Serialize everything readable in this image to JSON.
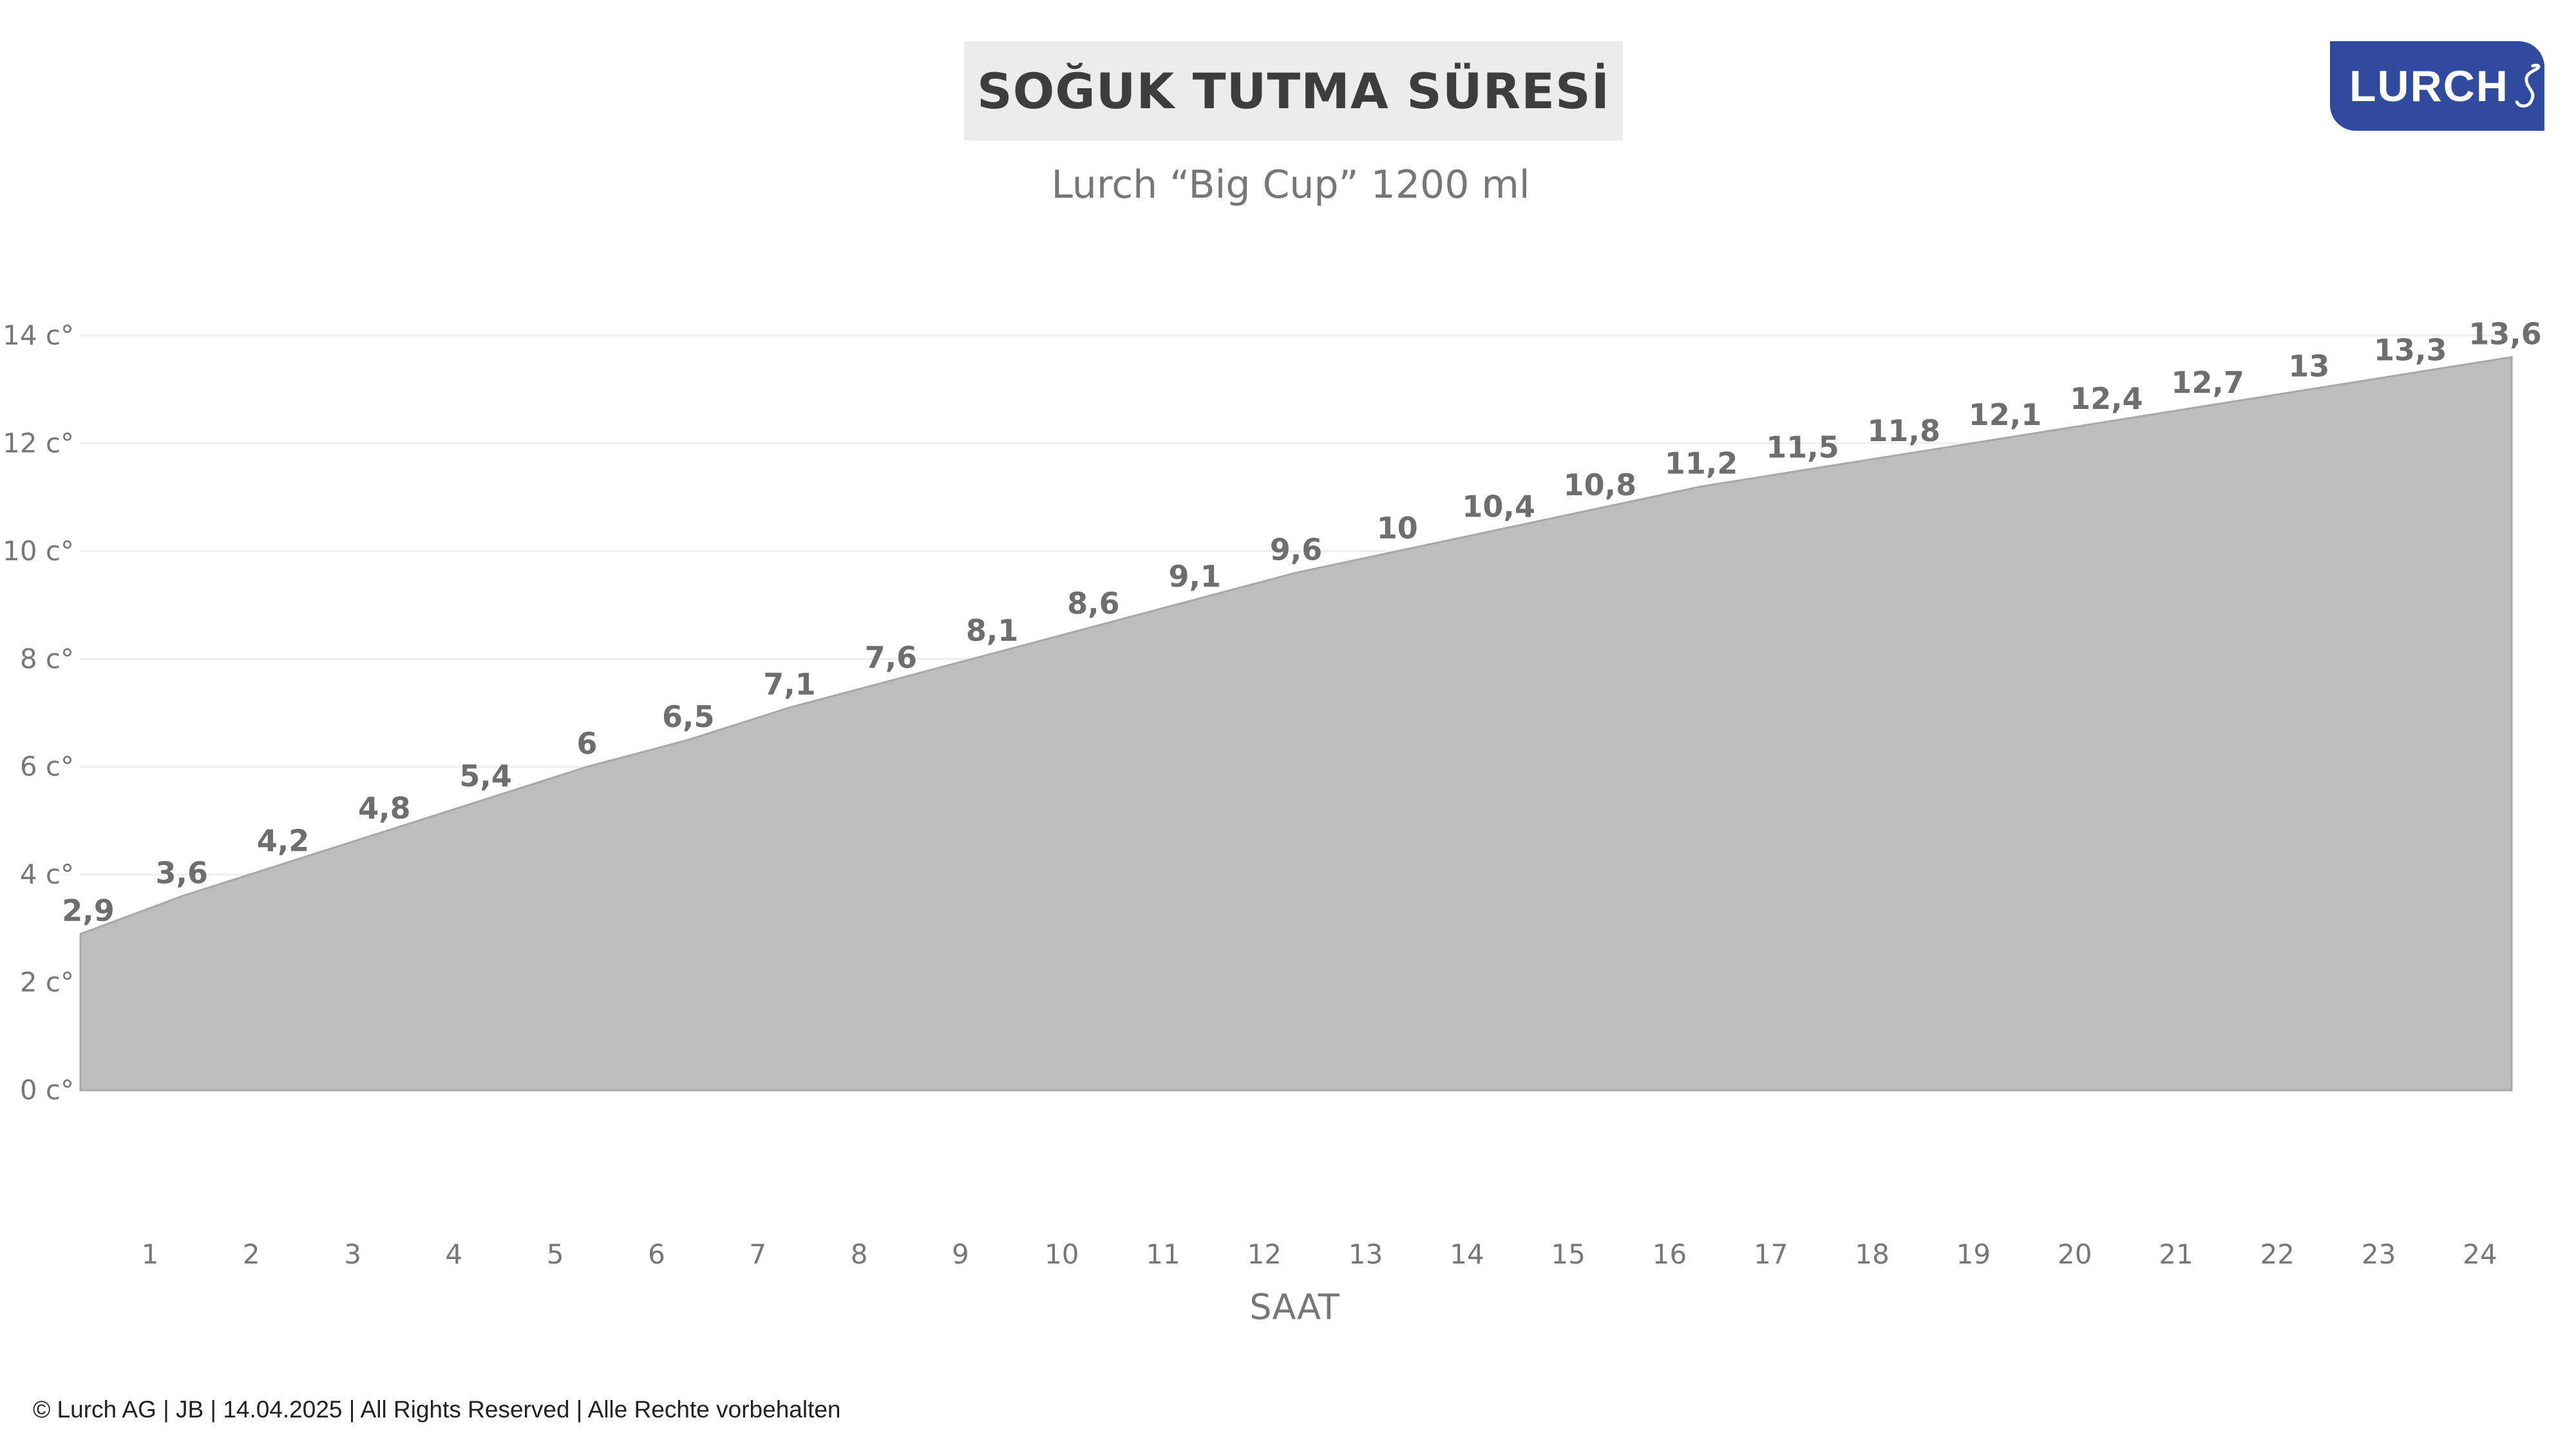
{
  "header": {
    "title": "SOĞUK TUTMA SÜRESİ",
    "subtitle": "Lurch “Big Cup” 1200 ml"
  },
  "logo": {
    "text": "LURCH",
    "color": "#2f4a9e"
  },
  "footer": {
    "text": "© Lurch AG | JB | 14.04.2025 | All Rights Reserved | Alle Rechte vorbehalten"
  },
  "chart_data": {
    "type": "area",
    "title": "SOĞUK TUTMA SÜRESİ",
    "subtitle": "Lurch “Big Cup” 1200 ml",
    "xlabel": "SAAT",
    "ylabel": "",
    "x_tick_labels": [
      "1",
      "2",
      "3",
      "4",
      "5",
      "6",
      "7",
      "8",
      "9",
      "10",
      "11",
      "12",
      "13",
      "14",
      "15",
      "16",
      "17",
      "18",
      "19",
      "20",
      "21",
      "22",
      "23",
      "24"
    ],
    "y_ticks": [
      0,
      2,
      4,
      6,
      8,
      10,
      12,
      14
    ],
    "y_tick_labels": [
      "0 c°",
      "2 c°",
      "4 c°",
      "6 c°",
      "8 c°",
      "10 c°",
      "12 c°",
      "14 c°"
    ],
    "ylim": [
      0,
      14
    ],
    "x": [
      0,
      1,
      2,
      3,
      4,
      5,
      6,
      7,
      8,
      9,
      10,
      11,
      12,
      13,
      14,
      15,
      16,
      17,
      18,
      19,
      20,
      21,
      22,
      23,
      24
    ],
    "values": [
      2.9,
      3.6,
      4.2,
      4.8,
      5.4,
      6,
      6.5,
      7.1,
      7.6,
      8.1,
      8.6,
      9.1,
      9.6,
      10,
      10.4,
      10.8,
      11.2,
      11.5,
      11.8,
      12.1,
      12.4,
      12.7,
      13,
      13.3,
      13.6
    ],
    "data_labels": [
      "2,9",
      "3,6",
      "4,2",
      "4,8",
      "5,4",
      "6",
      "6,5",
      "7,1",
      "7,6",
      "8,1",
      "8,6",
      "9,1",
      "9,6",
      "10",
      "10,4",
      "10,8",
      "11,2",
      "11,5",
      "11,8",
      "12,1",
      "12,4",
      "12,7",
      "13",
      "13,3",
      "13,6"
    ],
    "fill_color": "#bdbdbd",
    "grid": true,
    "legend": "none"
  }
}
